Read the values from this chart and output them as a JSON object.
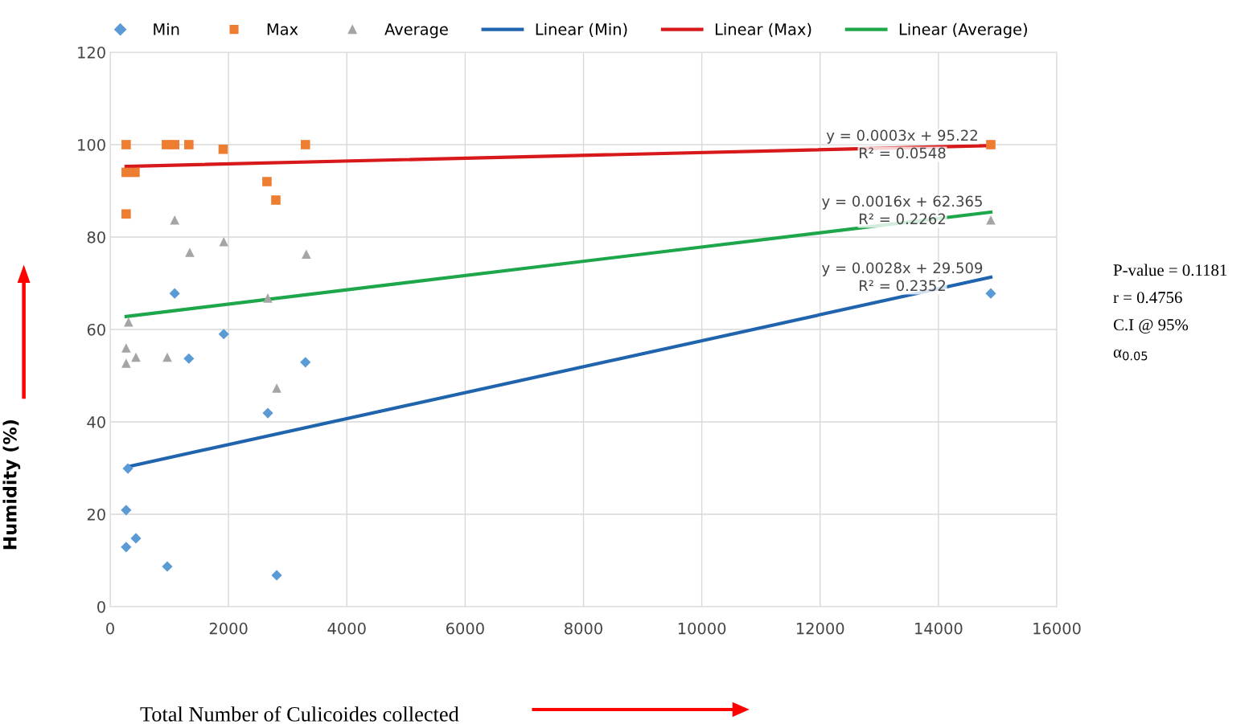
{
  "chart_data": {
    "type": "scatter",
    "xlabel": "Total Number of Culicoides collected",
    "ylabel": "Humidity (%)",
    "xlim": [
      0,
      16000
    ],
    "xticks": [
      0,
      2000,
      4000,
      6000,
      8000,
      10000,
      12000,
      14000,
      16000
    ],
    "ylim": [
      0,
      120
    ],
    "yticks": [
      0,
      20,
      40,
      60,
      80,
      100,
      120
    ],
    "grid": true,
    "legend": "top",
    "series": [
      {
        "name": "Min",
        "marker": "diamond",
        "color": "#5b9bd5",
        "x": [
          300,
          270,
          270,
          435,
          965,
          1090,
          1330,
          1920,
          2665,
          2815,
          3300,
          14885
        ],
        "values": [
          29.9,
          20.9,
          12.9,
          14.8,
          8.7,
          67.8,
          53.7,
          59,
          41.9,
          6.8,
          52.9,
          67.8
        ]
      },
      {
        "name": "Max",
        "marker": "square",
        "color": "#ed7d31",
        "x": [
          270,
          270,
          420,
          270,
          950,
          1090,
          1330,
          1910,
          2650,
          2800,
          3300,
          14885
        ],
        "values": [
          100,
          94,
          94,
          85,
          100,
          100,
          100,
          99,
          92,
          88,
          100,
          100
        ]
      },
      {
        "name": "Average",
        "marker": "triangle",
        "color": "#a5a5a5",
        "x": [
          310,
          270,
          270,
          435,
          965,
          1090,
          1345,
          1920,
          2665,
          2815,
          3315,
          14885
        ],
        "values": [
          61.6,
          56,
          52.7,
          54,
          54,
          83.7,
          76.7,
          79,
          66.8,
          47.3,
          76.3,
          83.7
        ]
      },
      {
        "name": "Linear (Min)",
        "type": "line",
        "marker": "none",
        "color": "#1f64ad",
        "x": [
          300,
          14885
        ],
        "values": [
          30.3,
          71.3
        ]
      },
      {
        "name": "Linear (Max)",
        "type": "line",
        "marker": "none",
        "color": "#d7191c",
        "x": [
          270,
          14885
        ],
        "values": [
          95.3,
          99.8
        ]
      },
      {
        "name": "Linear (Average)",
        "type": "line",
        "marker": "none",
        "color": "#1ea64b",
        "x": [
          270,
          14885
        ],
        "values": [
          62.8,
          85.4
        ]
      }
    ],
    "annotations": [
      "y = 0.0003x + 95.22",
      "R² = 0.0548",
      "y = 0.0016x + 62.365",
      "R² = 0.2262",
      "y = 0.0028x + 29.509",
      "R² = 0.2352",
      "P-value = 0.1181",
      "r = 0.4756",
      "C.I @ 95%",
      "α$_{0.05}$"
    ]
  }
}
